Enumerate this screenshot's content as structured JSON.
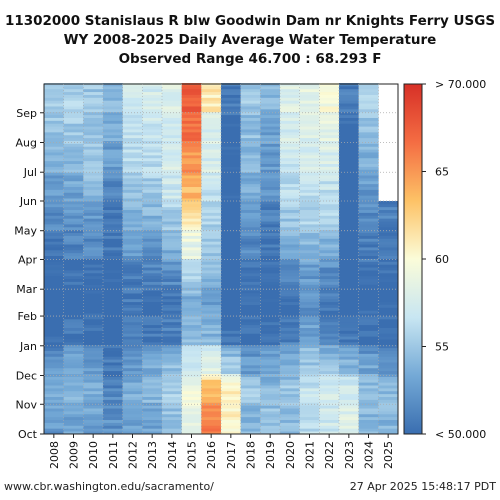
{
  "chart_data": {
    "type": "heatmap",
    "title": [
      "11302000 Stanislaus R blw Goodwin Dam nr Knights Ferry USGS",
      "WY 2008-2025 Daily Average Water Temperature",
      "Observed Range 46.700 : 68.293 F"
    ],
    "x_categories": [
      "2008",
      "2009",
      "2010",
      "2011",
      "2012",
      "2013",
      "2014",
      "2015",
      "2016",
      "2017",
      "2018",
      "2019",
      "2020",
      "2021",
      "2022",
      "2023",
      "2024",
      "2025"
    ],
    "y_months": [
      "Oct",
      "Nov",
      "Dec",
      "Jan",
      "Feb",
      "Mar",
      "Apr",
      "May",
      "Jun",
      "Jul",
      "Aug",
      "Sep"
    ],
    "colorbar": {
      "min": 50,
      "max": 70,
      "ticks": [
        "< 50.000",
        "55",
        "60",
        "65",
        "> 70.000"
      ],
      "colors": [
        "#3a6eb0",
        "#74a9d6",
        "#c8e6f2",
        "#fbfcd9",
        "#fdc266",
        "#f46d43",
        "#d73027"
      ]
    },
    "observed_min": 46.7,
    "observed_max": 68.293,
    "monthly_means": {
      "2008": [
        52.5,
        53.5,
        52.5,
        49.5,
        49.0,
        49.5,
        50.5,
        51.5,
        52.5,
        54.0,
        55.0,
        55.5
      ],
      "2009": [
        53.0,
        54.0,
        53.5,
        50.5,
        49.5,
        50.0,
        51.0,
        52.0,
        53.0,
        54.5,
        55.0,
        55.5
      ],
      "2010": [
        53.0,
        53.5,
        52.5,
        50.0,
        49.5,
        50.0,
        51.5,
        52.5,
        54.0,
        55.0,
        55.0,
        55.0
      ],
      "2011": [
        52.0,
        51.5,
        50.5,
        49.0,
        48.5,
        49.5,
        50.5,
        50.5,
        51.5,
        52.5,
        53.5,
        54.0
      ],
      "2012": [
        53.0,
        53.5,
        52.5,
        51.0,
        50.5,
        51.0,
        52.5,
        54.0,
        55.0,
        56.0,
        56.5,
        57.0
      ],
      "2013": [
        53.0,
        54.0,
        53.5,
        50.5,
        50.0,
        51.0,
        52.0,
        54.0,
        55.0,
        56.0,
        57.0,
        57.5
      ],
      "2014": [
        54.5,
        55.5,
        54.5,
        51.0,
        50.5,
        51.5,
        53.5,
        55.0,
        57.0,
        57.5,
        57.5,
        58.0
      ],
      "2015": [
        59.0,
        59.0,
        57.0,
        54.0,
        53.5,
        55.5,
        58.5,
        61.0,
        63.5,
        65.0,
        66.5,
        67.5
      ],
      "2016": [
        66.0,
        64.0,
        58.0,
        54.0,
        53.0,
        54.0,
        55.0,
        55.5,
        56.5,
        57.5,
        57.5,
        61.0
      ],
      "2017": [
        60.5,
        61.0,
        55.0,
        50.0,
        49.0,
        48.0,
        48.5,
        49.0,
        49.5,
        49.5,
        49.5,
        51.0
      ],
      "2018": [
        54.0,
        55.0,
        52.5,
        50.0,
        49.5,
        50.0,
        51.5,
        52.5,
        53.5,
        54.0,
        54.5,
        55.0
      ],
      "2019": [
        54.5,
        54.5,
        53.0,
        50.0,
        49.0,
        49.5,
        50.5,
        51.0,
        52.0,
        52.5,
        53.0,
        54.0
      ],
      "2020": [
        54.5,
        55.0,
        53.5,
        51.0,
        50.5,
        51.5,
        53.5,
        55.0,
        56.0,
        57.0,
        57.5,
        58.0
      ],
      "2021": [
        56.0,
        56.5,
        55.0,
        53.0,
        52.0,
        52.5,
        54.0,
        55.5,
        56.5,
        57.5,
        58.0,
        58.5
      ],
      "2022": [
        57.0,
        57.5,
        55.0,
        51.0,
        50.5,
        51.5,
        53.5,
        55.5,
        56.5,
        57.5,
        58.5,
        59.5
      ],
      "2023": [
        58.0,
        57.5,
        54.0,
        50.5,
        49.0,
        48.5,
        48.0,
        48.0,
        48.0,
        48.5,
        49.5,
        51.0
      ],
      "2024": [
        54.0,
        54.5,
        53.0,
        50.0,
        49.5,
        50.0,
        51.0,
        51.5,
        52.5,
        53.5,
        54.5,
        55.5
      ],
      "2025": [
        54.0,
        54.0,
        52.5,
        50.0,
        49.5,
        50.0,
        50.5,
        51.0,
        null,
        null,
        null,
        null
      ]
    }
  },
  "footer": {
    "url": "www.cbr.washington.edu/sacramento/",
    "timestamp": "27 Apr 2025 15:48:17 PDT"
  }
}
